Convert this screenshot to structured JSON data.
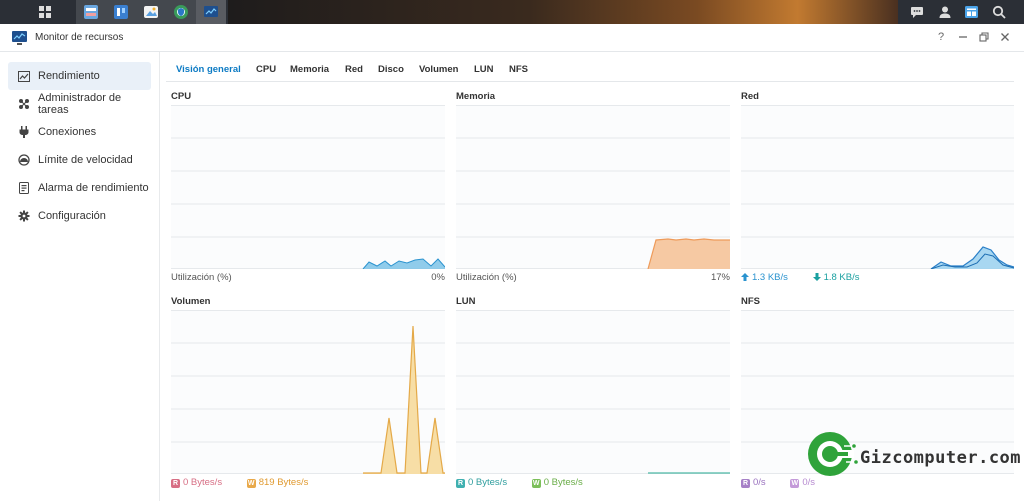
{
  "window": {
    "title": "Monitor de recursos"
  },
  "sidebar": {
    "items": [
      {
        "label": "Rendimiento",
        "icon": "chart-icon"
      },
      {
        "label": "Administrador de tareas",
        "icon": "tasks-icon"
      },
      {
        "label": "Conexiones",
        "icon": "plug-icon"
      },
      {
        "label": "Límite de velocidad",
        "icon": "gauge-icon"
      },
      {
        "label": "Alarma de rendimiento",
        "icon": "alarm-icon"
      },
      {
        "label": "Configuración",
        "icon": "gear-icon"
      }
    ]
  },
  "tabs": [
    "Visión general",
    "CPU",
    "Memoria",
    "Red",
    "Disco",
    "Volumen",
    "LUN",
    "NFS"
  ],
  "panels": {
    "cpu": {
      "title": "CPU",
      "legend": "Utilización  (%)",
      "value": "0%"
    },
    "memory": {
      "title": "Memoria",
      "legend": "Utilización  (%)",
      "value": "17%"
    },
    "network": {
      "title": "Red",
      "up": "1.3 KB/s",
      "down": "1.8 KB/s"
    },
    "volume": {
      "title": "Volumen",
      "read_badge": "R",
      "read": "0 Bytes/s",
      "write_badge": "W",
      "write": "819 Bytes/s"
    },
    "lun": {
      "title": "LUN",
      "read_badge": "R",
      "read": "0 Bytes/s",
      "write_badge": "W",
      "write": "0 Bytes/s"
    },
    "nfs": {
      "title": "NFS",
      "read_badge": "R",
      "read": "0/s",
      "write_badge": "W",
      "write": "0/s"
    }
  },
  "colors": {
    "accent": "#0d7bc4",
    "cpu_fill": "#7cc3e8",
    "cpu_line": "#2a93cf",
    "mem_fill": "#f6c9a3",
    "mem_line": "#ee9b5a",
    "vol_fill": "#f7dea6",
    "vol_line": "#e4a948",
    "lun_line": "#4cb8a6",
    "badge_r_red": "#d76e84",
    "badge_w_orange": "#e9a94a",
    "badge_r_teal": "#3fb0b0",
    "badge_w_green": "#7cbf5a",
    "badge_r_purple": "#a680c7",
    "badge_w_purple": "#c49ad9"
  },
  "watermark": {
    "text": "Gizcomputer.com"
  }
}
